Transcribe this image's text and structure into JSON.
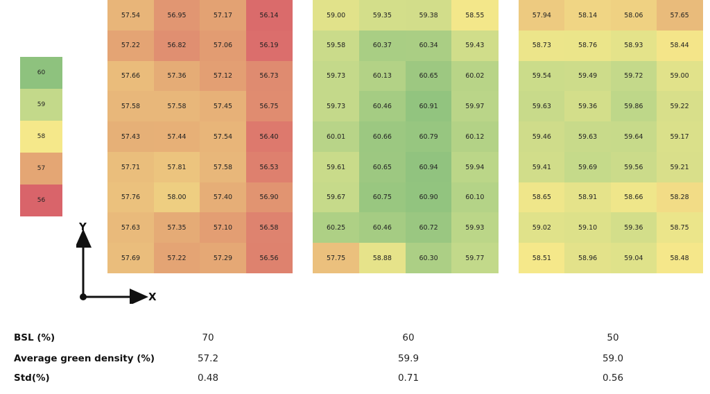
{
  "legend": {
    "entries": [
      {
        "label": "60",
        "color": "#8ec27e"
      },
      {
        "label": "59",
        "color": "#c3d98a"
      },
      {
        "label": "58",
        "color": "#f5e88a"
      },
      {
        "label": "57",
        "color": "#e4a674"
      },
      {
        "label": "56",
        "color": "#d9646a"
      }
    ]
  },
  "axes": {
    "x_label": "X",
    "y_label": "Y"
  },
  "chart_data": [
    {
      "type": "heatmap",
      "rows": 9,
      "cols": 4,
      "color_scale": {
        "min": 56,
        "max": 61,
        "stops": [
          "#d9646a",
          "#e4a674",
          "#f5e88a",
          "#c3d98a",
          "#8ec27e"
        ]
      },
      "values": [
        [
          57.54,
          56.95,
          57.17,
          56.14
        ],
        [
          57.22,
          56.82,
          57.06,
          56.19
        ],
        [
          57.66,
          57.36,
          57.12,
          56.73
        ],
        [
          57.58,
          57.58,
          57.45,
          56.75
        ],
        [
          57.43,
          57.44,
          57.54,
          56.4
        ],
        [
          57.71,
          57.81,
          57.58,
          56.53
        ],
        [
          57.76,
          58.0,
          57.4,
          56.9
        ],
        [
          57.63,
          57.35,
          57.1,
          56.58
        ],
        [
          57.69,
          57.22,
          57.29,
          56.56
        ]
      ]
    },
    {
      "type": "heatmap",
      "rows": 9,
      "cols": 4,
      "color_scale": {
        "min": 56,
        "max": 61,
        "stops": [
          "#d9646a",
          "#e4a674",
          "#f5e88a",
          "#c3d98a",
          "#8ec27e"
        ]
      },
      "values": [
        [
          59.0,
          59.35,
          59.38,
          58.55
        ],
        [
          59.58,
          60.37,
          60.34,
          59.43
        ],
        [
          59.73,
          60.13,
          60.65,
          60.02
        ],
        [
          59.73,
          60.46,
          60.91,
          59.97
        ],
        [
          60.01,
          60.66,
          60.79,
          60.12
        ],
        [
          59.61,
          60.65,
          60.94,
          59.94
        ],
        [
          59.67,
          60.75,
          60.9,
          60.1
        ],
        [
          60.25,
          60.46,
          60.72,
          59.93
        ],
        [
          57.75,
          58.88,
          60.3,
          59.77
        ]
      ]
    },
    {
      "type": "heatmap",
      "rows": 9,
      "cols": 4,
      "color_scale": {
        "min": 56,
        "max": 61,
        "stops": [
          "#d9646a",
          "#e4a674",
          "#f5e88a",
          "#c3d98a",
          "#8ec27e"
        ]
      },
      "values": [
        [
          57.94,
          58.14,
          58.06,
          57.65
        ],
        [
          58.73,
          58.76,
          58.93,
          58.44
        ],
        [
          59.54,
          59.49,
          59.72,
          59.0
        ],
        [
          59.63,
          59.36,
          59.86,
          59.22
        ],
        [
          59.46,
          59.63,
          59.64,
          59.17
        ],
        [
          59.41,
          59.69,
          59.56,
          59.21
        ],
        [
          58.65,
          58.91,
          58.66,
          58.28
        ],
        [
          59.02,
          59.1,
          59.36,
          58.75
        ],
        [
          58.51,
          58.96,
          59.04,
          58.48
        ]
      ]
    }
  ],
  "stats": {
    "rows": [
      {
        "label": "BSL (%)",
        "values": [
          "70",
          "60",
          "50"
        ]
      },
      {
        "label": "Average green density (%)",
        "values": [
          "57.2",
          "59.9",
          "59.0"
        ]
      },
      {
        "label": "Std(%)",
        "values": [
          "0.48",
          "0.71",
          "0.56"
        ]
      }
    ]
  }
}
